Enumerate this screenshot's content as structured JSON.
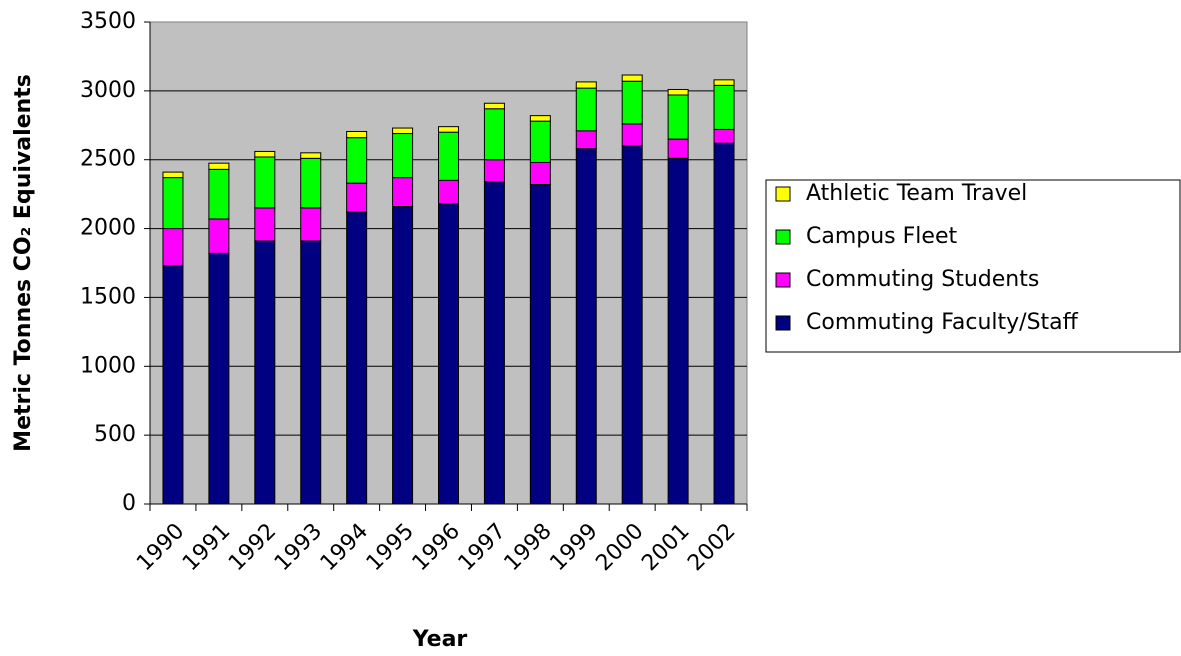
{
  "chart_data": {
    "type": "stacked_bar",
    "x_label": "Year",
    "y_label": "Metric Tonnes CO₂ Equivalents",
    "categories": [
      "1990",
      "1991",
      "1992",
      "1993",
      "1994",
      "1995",
      "1996",
      "1997",
      "1998",
      "1999",
      "2000",
      "2001",
      "2002"
    ],
    "series": [
      {
        "name": "Commuting Faculty/Staff",
        "color": "#000080",
        "values": [
          1730,
          1820,
          1910,
          1910,
          2120,
          2160,
          2180,
          2340,
          2320,
          2580,
          2600,
          2510,
          2620
        ]
      },
      {
        "name": "Commuting Students",
        "color": "#ff00ff",
        "values": [
          270,
          250,
          240,
          240,
          210,
          210,
          170,
          160,
          160,
          130,
          160,
          140,
          100
        ]
      },
      {
        "name": "Campus Fleet",
        "color": "#00ff00",
        "values": [
          370,
          360,
          370,
          360,
          330,
          320,
          350,
          370,
          300,
          310,
          310,
          320,
          320
        ]
      },
      {
        "name": "Athletic Team Travel",
        "color": "#ffff00",
        "values": [
          40,
          45,
          40,
          40,
          45,
          40,
          40,
          40,
          40,
          45,
          45,
          40,
          40
        ]
      }
    ],
    "ylim": [
      0,
      3500
    ],
    "yticks": [
      0,
      500,
      1000,
      1500,
      2000,
      2500,
      3000,
      3500
    ],
    "grid": true,
    "plot_background": "#c0c0c0",
    "legend_position": "right"
  }
}
